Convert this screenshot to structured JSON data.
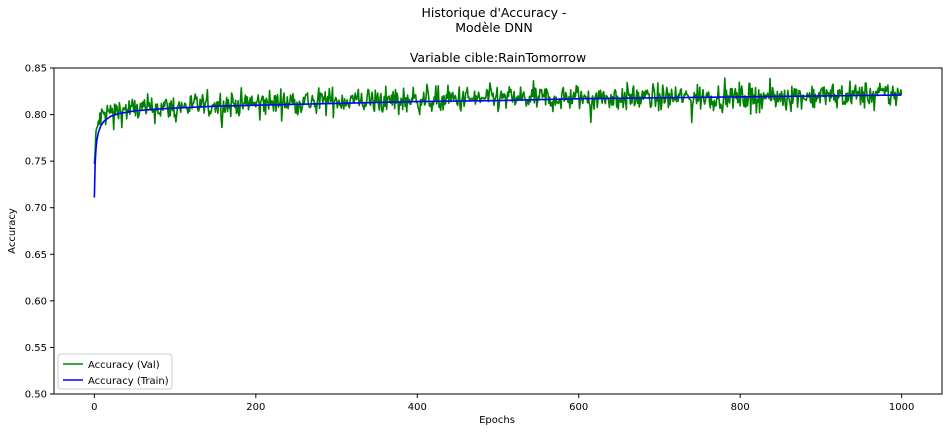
{
  "chart_data": {
    "type": "line",
    "suptitle": [
      "Historique d'Accuracy -",
      "Modèle DNN"
    ],
    "title": "Variable cible:RainTomorrow",
    "xlabel": "Epochs",
    "ylabel": "Accuracy",
    "xlim": [
      -50,
      1050
    ],
    "ylim": [
      0.5,
      0.85
    ],
    "xticks": [
      0,
      200,
      400,
      600,
      800,
      1000
    ],
    "yticks": [
      0.5,
      0.55,
      0.6,
      0.65,
      0.7,
      0.75,
      0.8,
      0.85
    ],
    "ytick_labels": [
      "0.50",
      "0.55",
      "0.60",
      "0.65",
      "0.70",
      "0.75",
      "0.80",
      "0.85"
    ],
    "grid": false,
    "legend_location": "lower-left",
    "epochs": 1000,
    "series": [
      {
        "name": "Accuracy (Val)",
        "color": "#008000",
        "x": [
          0,
          2,
          5,
          10,
          20,
          40,
          60,
          100,
          150,
          200,
          250,
          300,
          400,
          500,
          600,
          700,
          800,
          900,
          1000
        ],
        "values": [
          0.747,
          0.775,
          0.792,
          0.799,
          0.803,
          0.805,
          0.806,
          0.808,
          0.811,
          0.812,
          0.814,
          0.815,
          0.816,
          0.817,
          0.818,
          0.818,
          0.819,
          0.82,
          0.822
        ],
        "noise": 0.01
      },
      {
        "name": "Accuracy (Train)",
        "color": "#0000ff",
        "x": [
          0,
          1,
          2,
          3,
          5,
          8,
          12,
          20,
          30,
          50,
          80,
          100,
          150,
          200,
          300,
          400,
          500,
          600,
          700,
          800,
          900,
          1000
        ],
        "values": [
          0.711,
          0.748,
          0.763,
          0.772,
          0.781,
          0.788,
          0.793,
          0.798,
          0.801,
          0.804,
          0.806,
          0.807,
          0.809,
          0.81,
          0.812,
          0.814,
          0.815,
          0.817,
          0.818,
          0.819,
          0.82,
          0.821
        ],
        "noise": 0
      }
    ]
  }
}
